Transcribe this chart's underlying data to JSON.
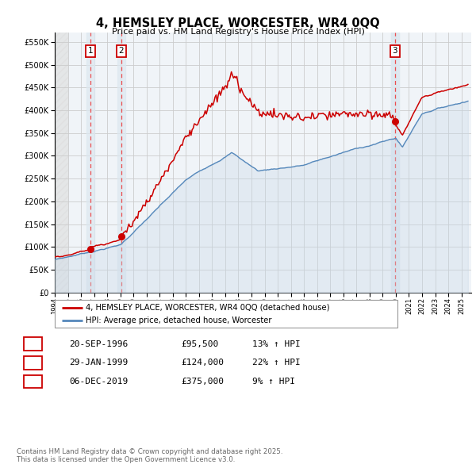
{
  "title": "4, HEMSLEY PLACE, WORCESTER, WR4 0QQ",
  "subtitle": "Price paid vs. HM Land Registry's House Price Index (HPI)",
  "yticks": [
    0,
    50000,
    100000,
    150000,
    200000,
    250000,
    300000,
    350000,
    400000,
    450000,
    500000,
    550000
  ],
  "sale_years_float": [
    1996.72,
    1999.08,
    2019.92
  ],
  "sale_prices": [
    95500,
    124000,
    375000
  ],
  "sale_labels": [
    "1",
    "2",
    "3"
  ],
  "sale_pct": [
    "13%",
    "22%",
    "9%"
  ],
  "sale_dates_display": [
    "20-SEP-1996",
    "29-JAN-1999",
    "06-DEC-2019"
  ],
  "legend_label_red": "4, HEMSLEY PLACE, WORCESTER, WR4 0QQ (detached house)",
  "legend_label_blue": "HPI: Average price, detached house, Worcester",
  "footnote": "Contains HM Land Registry data © Crown copyright and database right 2025.\nThis data is licensed under the Open Government Licence v3.0.",
  "red_color": "#cc0000",
  "blue_color": "#5588bb",
  "blue_fill_color": "#c8d8e8",
  "blue_span_color": "#dde8f0",
  "grid_color": "#cccccc",
  "vline_color": "#ee3333",
  "hatch_color": "#cccccc",
  "label_box_color": "#cc0000"
}
